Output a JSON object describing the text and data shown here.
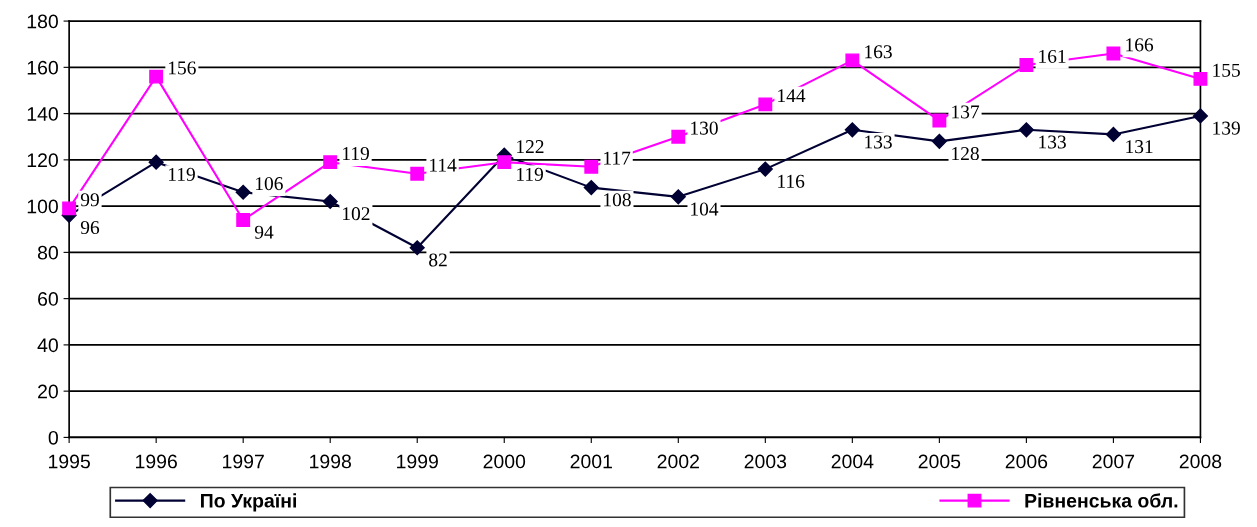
{
  "chart_data": {
    "type": "line",
    "categories": [
      "1995",
      "1996",
      "1997",
      "1998",
      "1999",
      "2000",
      "2001",
      "2002",
      "2003",
      "2004",
      "2005",
      "2006",
      "2007",
      "2008"
    ],
    "series": [
      {
        "name": "По Україні",
        "color": "#000033",
        "marker": "diamond",
        "values": [
          96,
          119,
          106,
          102,
          82,
          122,
          108,
          104,
          116,
          133,
          128,
          133,
          131,
          139
        ]
      },
      {
        "name": "Рівненська обл.",
        "color": "#ff00ff",
        "marker": "square",
        "values": [
          99,
          156,
          94,
          119,
          114,
          119,
          117,
          130,
          144,
          163,
          137,
          161,
          166,
          155
        ]
      }
    ],
    "ylim": [
      0,
      180
    ],
    "yticks": [
      0,
      20,
      40,
      60,
      80,
      100,
      120,
      140,
      160,
      180
    ],
    "grid": "y",
    "legend": "bottom",
    "data_labels": true,
    "line_style": "solid"
  }
}
